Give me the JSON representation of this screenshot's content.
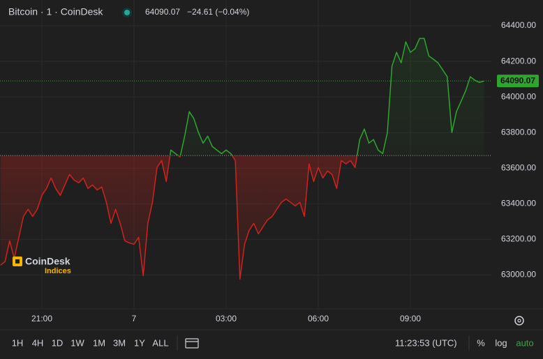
{
  "header": {
    "symbol": "Bitcoin · 1 · CoinDesk",
    "change": "−24.61 (−0.04%)"
  },
  "logo": {
    "name": "CoinDesk",
    "sub": "Indices"
  },
  "toolbar": {
    "ranges": [
      "1H",
      "4H",
      "1D",
      "1W",
      "1M",
      "3M",
      "1Y",
      "ALL"
    ],
    "time": "11:23:53 (UTC)",
    "options": [
      "%",
      "log",
      "auto"
    ]
  },
  "chart_data": {
    "type": "baseline",
    "categories": [
      null,
      null,
      null,
      null,
      null,
      null,
      null,
      null,
      null,
      "21:00",
      null,
      null,
      null,
      null,
      null,
      null,
      null,
      null,
      null,
      null,
      null,
      null,
      null,
      null,
      null,
      null,
      null,
      null,
      null,
      "7",
      null,
      null,
      null,
      null,
      null,
      null,
      null,
      null,
      null,
      null,
      null,
      null,
      null,
      null,
      null,
      null,
      null,
      null,
      null,
      "03:00",
      null,
      null,
      null,
      null,
      null,
      null,
      null,
      null,
      null,
      null,
      null,
      null,
      null,
      null,
      null,
      null,
      null,
      null,
      null,
      "06:00",
      null,
      null,
      null,
      null,
      null,
      null,
      null,
      null,
      null,
      null,
      null,
      null,
      null,
      null,
      null,
      null,
      null,
      null,
      null,
      "09:00",
      null,
      null,
      null,
      null,
      null,
      null,
      null,
      null,
      null,
      null,
      null,
      null,
      null,
      null,
      null,
      null
    ],
    "values": [
      63055,
      63075,
      63192,
      63094,
      63212,
      63329,
      63369,
      63329,
      63369,
      63447,
      63486,
      63545,
      63486,
      63447,
      63506,
      63565,
      63533,
      63518,
      63545,
      63486,
      63506,
      63478,
      63494,
      63408,
      63290,
      63369,
      63290,
      63192,
      63180,
      63173,
      63212,
      62996,
      63290,
      63408,
      63604,
      63643,
      63525,
      63702,
      63682,
      63663,
      63780,
      63918,
      63878,
      63800,
      63741,
      63780,
      63722,
      63702,
      63682,
      63702,
      63682,
      63643,
      62977,
      63173,
      63251,
      63290,
      63231,
      63271,
      63310,
      63329,
      63369,
      63408,
      63427,
      63408,
      63388,
      63408,
      63329,
      63624,
      63525,
      63604,
      63545,
      63584,
      63565,
      63486,
      63643,
      63624,
      63643,
      63604,
      63761,
      63820,
      63741,
      63761,
      63702,
      63682,
      63800,
      64173,
      64251,
      64192,
      64310,
      64251,
      64271,
      64329,
      64329,
      64231,
      64212,
      64192,
      64153,
      64114,
      63800,
      63918,
      63976,
      64035,
      64114,
      64094,
      64082,
      64090.07
    ],
    "baseline": 63671,
    "last_price": 64090.07,
    "up_color": "#2fa530",
    "down_color": "#d0231d",
    "ylim": [
      62810,
      64545
    ],
    "yticks": [
      {
        "value": 63000,
        "label": "63000.00"
      },
      {
        "value": 63200,
        "label": "63200.00"
      },
      {
        "value": 63400,
        "label": "63400.00"
      },
      {
        "value": 63600,
        "label": "63600.00"
      },
      {
        "value": 63800,
        "label": "63800.00"
      },
      {
        "value": 64000,
        "label": "64000.00"
      },
      {
        "value": 64200,
        "label": "64200.00"
      },
      {
        "value": 64400,
        "label": "64400.00"
      }
    ],
    "grid": true
  }
}
